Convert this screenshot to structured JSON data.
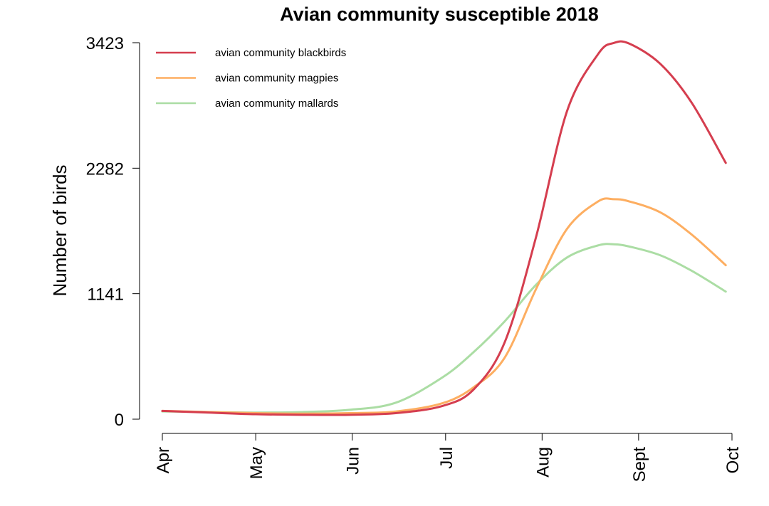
{
  "chart_data": {
    "type": "line",
    "title": "Avian community susceptible 2018",
    "xlabel": "",
    "ylabel": "Number of birds",
    "x_ticks": [
      "Apr",
      "May",
      "Jun",
      "Jul",
      "Aug",
      "Sept",
      "Oct"
    ],
    "y_ticks": [
      0,
      1141,
      2282,
      3423
    ],
    "ylim": [
      0,
      3423
    ],
    "xlim": [
      "2018-04-01",
      "2018-10-01"
    ],
    "legend_position": "top-left",
    "grid": false,
    "x": [
      "2018-04-01",
      "2018-04-16",
      "2018-05-01",
      "2018-05-16",
      "2018-05-31",
      "2018-06-15",
      "2018-06-30",
      "2018-07-10",
      "2018-07-20",
      "2018-07-30",
      "2018-08-09",
      "2018-08-19",
      "2018-08-24",
      "2018-08-29",
      "2018-09-08",
      "2018-09-18",
      "2018-09-29"
    ],
    "series": [
      {
        "name": "avian community blackbirds",
        "color": "#d53e4f",
        "values": [
          75,
          60,
          45,
          40,
          40,
          55,
          120,
          270,
          700,
          1650,
          2800,
          3320,
          3420,
          3415,
          3230,
          2880,
          2330
        ]
      },
      {
        "name": "avian community magpies",
        "color": "#fdae61",
        "values": [
          75,
          65,
          55,
          50,
          55,
          70,
          145,
          290,
          560,
          1180,
          1730,
          1980,
          2000,
          1980,
          1880,
          1680,
          1400
        ]
      },
      {
        "name": "avian community mallards",
        "color": "#abdda4",
        "values": [
          70,
          65,
          60,
          65,
          85,
          150,
          380,
          610,
          890,
          1220,
          1470,
          1580,
          1590,
          1570,
          1490,
          1350,
          1160
        ]
      }
    ]
  }
}
